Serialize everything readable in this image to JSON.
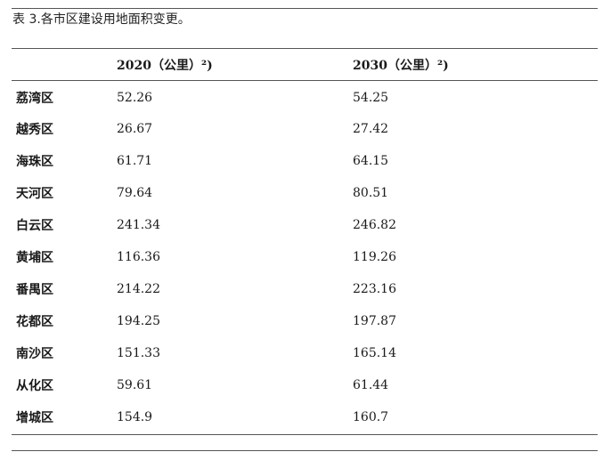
{
  "caption": "表 3.各市区建设用地面积变更。",
  "headers": [
    "",
    "2020（公里）²)",
    "2030（公里）²)"
  ],
  "rows": [
    {
      "district": "荔湾区",
      "y2020": "52.26",
      "y2030": "54.25"
    },
    {
      "district": "越秀区",
      "y2020": "26.67",
      "y2030": "27.42"
    },
    {
      "district": "海珠区",
      "y2020": "61.71",
      "y2030": "64.15"
    },
    {
      "district": "天河区",
      "y2020": "79.64",
      "y2030": "80.51"
    },
    {
      "district": "白云区",
      "y2020": "241.34",
      "y2030": "246.82"
    },
    {
      "district": "黄埔区",
      "y2020": "116.36",
      "y2030": "119.26"
    },
    {
      "district": "番禺区",
      "y2020": "214.22",
      "y2030": "223.16"
    },
    {
      "district": "花都区",
      "y2020": "194.25",
      "y2030": "197.87"
    },
    {
      "district": "南沙区",
      "y2020": "151.33",
      "y2030": "165.14"
    },
    {
      "district": "从化区",
      "y2020": "59.61",
      "y2030": "61.44"
    },
    {
      "district": "增城区",
      "y2020": "154.9",
      "y2030": "160.7"
    }
  ]
}
